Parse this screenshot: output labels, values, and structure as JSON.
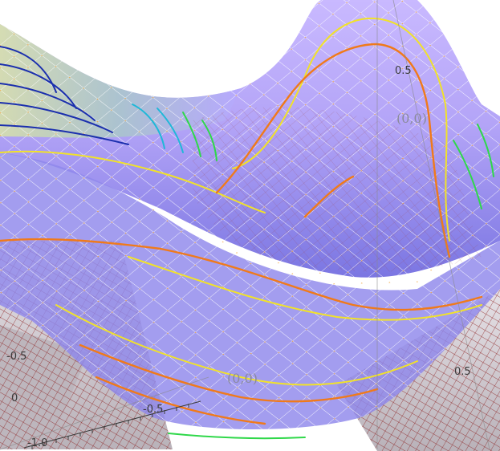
{
  "labels": {
    "tick_neg_half_left": "-0.5",
    "tick_neg_half_bottom": "-0.5",
    "tick_neg_one": "-1.0",
    "tick_pos_half_right": "0.5",
    "tick_pos_half_top": "0.5",
    "point_back": "(0,0)",
    "point_front": "(0,0)",
    "stray_zero": "0"
  },
  "colors": {
    "surface_top": "#b9a8ff",
    "surface_mid": "#a497f5",
    "surface_low": "#7f78e4",
    "saddle": "#cfc9cf",
    "saddle_mesh": "#8b1e1e",
    "mesh_light": "#ffffff",
    "mesh_dot": "#f2a33a",
    "contour_blue": "#1b2fae",
    "contour_cyan": "#1fb8d8",
    "contour_green": "#2fd84a",
    "contour_yellow": "#f1e22a",
    "contour_orange": "#f07a1a",
    "rim_shade": "#c8d7a8"
  }
}
